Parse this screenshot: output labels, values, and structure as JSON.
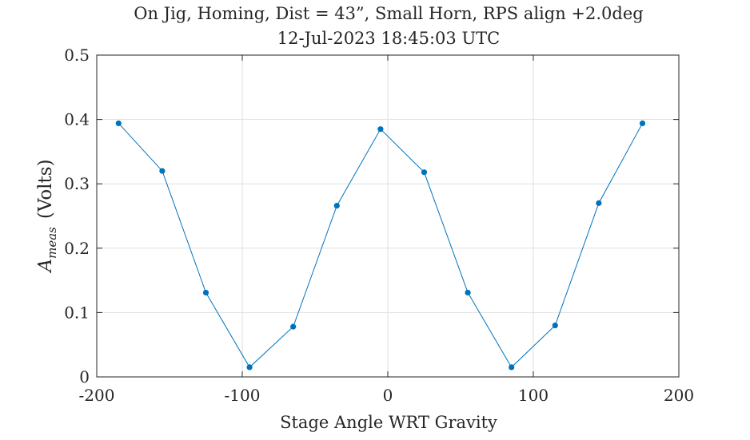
{
  "chart_data": {
    "type": "line",
    "title": "On Jig, Homing, Dist = 43”, Small Horn, RPS align +2.0deg",
    "subtitle": "12-Jul-2023 18:45:03 UTC",
    "xlabel": "Stage Angle WRT Gravity",
    "ylabel_main": "A",
    "ylabel_sub": "meas",
    "ylabel_unit": "(Volts)",
    "xlim": [
      -200,
      200
    ],
    "ylim": [
      0,
      0.5
    ],
    "xticks": [
      -200,
      -100,
      0,
      100,
      200
    ],
    "xtick_labels": [
      "-200",
      "-100",
      "0",
      "100",
      "200"
    ],
    "yticks": [
      0,
      0.1,
      0.2,
      0.3,
      0.4,
      0.5
    ],
    "ytick_labels": [
      "0",
      "0.1",
      "0.2",
      "0.3",
      "0.4",
      "0.5"
    ],
    "grid": true,
    "series": [
      {
        "color": "#0072bd",
        "marker": "dot",
        "x": [
          -185,
          -155,
          -125,
          -95,
          -65,
          -35,
          -5,
          25,
          55,
          85,
          115,
          145,
          175
        ],
        "y": [
          0.394,
          0.32,
          0.131,
          0.015,
          0.078,
          0.266,
          0.385,
          0.318,
          0.131,
          0.015,
          0.08,
          0.27,
          0.394
        ]
      }
    ]
  }
}
